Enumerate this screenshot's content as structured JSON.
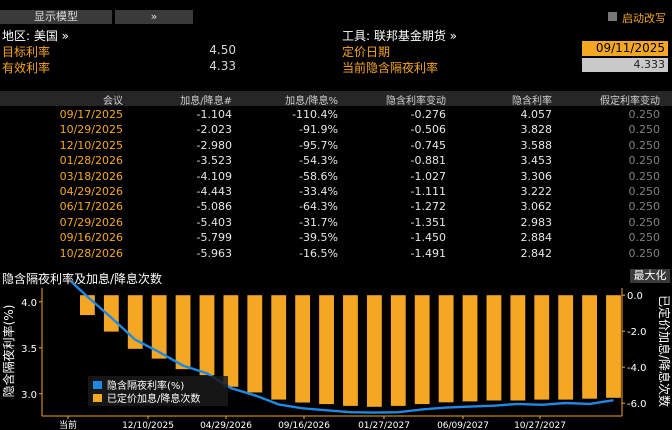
{
  "toolbar": {
    "show_model": "显示模型",
    "expand": "»",
    "launch_label": "启动改写"
  },
  "left_info": {
    "region_label": "地区: 美国 »",
    "target_rate_label": "目标利率",
    "target_rate_value": "4.50",
    "effective_rate_label": "有效利率",
    "effective_rate_value": "4.33"
  },
  "right_info": {
    "instrument_label": "工具: 联邦基金期货 »",
    "pricing_date_label": "定价日期",
    "pricing_date_value": "09/11/2025",
    "implied_rate_label": "当前隐含隔夜利率",
    "implied_rate_value": "4.333"
  },
  "table": {
    "headers": [
      "会议",
      "加息/降息#",
      "加息/降息%",
      "隐含利率变动",
      "隐含利率",
      "假定利率变动"
    ],
    "rows": [
      [
        "09/17/2025",
        "-1.104",
        "-110.4%",
        "-0.276",
        "4.057",
        "0.250"
      ],
      [
        "10/29/2025",
        "-2.023",
        "-91.9%",
        "-0.506",
        "3.828",
        "0.250"
      ],
      [
        "12/10/2025",
        "-2.980",
        "-95.7%",
        "-0.745",
        "3.588",
        "0.250"
      ],
      [
        "01/28/2026",
        "-3.523",
        "-54.3%",
        "-0.881",
        "3.453",
        "0.250"
      ],
      [
        "03/18/2026",
        "-4.109",
        "-58.6%",
        "-1.027",
        "3.306",
        "0.250"
      ],
      [
        "04/29/2026",
        "-4.443",
        "-33.4%",
        "-1.111",
        "3.222",
        "0.250"
      ],
      [
        "06/17/2026",
        "-5.086",
        "-64.3%",
        "-1.272",
        "3.062",
        "0.250"
      ],
      [
        "07/29/2026",
        "-5.403",
        "-31.7%",
        "-1.351",
        "2.983",
        "0.250"
      ],
      [
        "09/16/2026",
        "-5.799",
        "-39.5%",
        "-1.450",
        "2.884",
        "0.250"
      ],
      [
        "10/28/2026",
        "-5.963",
        "-16.5%",
        "-1.491",
        "2.842",
        "0.250"
      ]
    ]
  },
  "chart_section": {
    "title": "隐含隔夜利率及加息/降息次数",
    "maximize": "最大化"
  },
  "chart_data": {
    "type": "bar",
    "left_axis_label": "隐含隔夜利率(%)",
    "right_axis_label": "已定价加息/降息次数",
    "x_ticks": [
      "当前",
      "12/10/2025",
      "04/29/2026",
      "09/16/2026",
      "01/27/2027",
      "06/09/2027",
      "10/27/2027"
    ],
    "left_ticks": [
      "4.0",
      "3.5",
      "3.0"
    ],
    "right_ticks": [
      "0.0",
      "-2.0",
      "-4.0",
      "-6.0"
    ],
    "left_range": [
      2.78,
      4.15
    ],
    "right_range": [
      -6.6,
      0.4
    ],
    "series": [
      {
        "name": "隐含隔夜利率(%)",
        "kind": "line",
        "color": "#1e88e5",
        "values": [
          4.333,
          4.057,
          3.828,
          3.588,
          3.453,
          3.306,
          3.222,
          3.062,
          2.983,
          2.884,
          2.842,
          2.82,
          2.8,
          2.795,
          2.8,
          2.83,
          2.85,
          2.86,
          2.87,
          2.89,
          2.88,
          2.9,
          2.89,
          2.93
        ]
      },
      {
        "name": "已定价加息/降息次数",
        "kind": "bar",
        "color": "#f5a623",
        "values": [
          -1.104,
          -2.023,
          -2.98,
          -3.523,
          -4.109,
          -4.443,
          -5.086,
          -5.403,
          -5.799,
          -5.963,
          -6.05,
          -6.15,
          -6.2,
          -6.15,
          -6.05,
          -5.95,
          -5.9,
          -5.85,
          -5.85,
          -5.8,
          -5.8,
          -5.75,
          -5.7
        ]
      }
    ],
    "legend_position": "bottom-left",
    "colors": {
      "background": "#000000",
      "axis": "#f5a623"
    }
  }
}
